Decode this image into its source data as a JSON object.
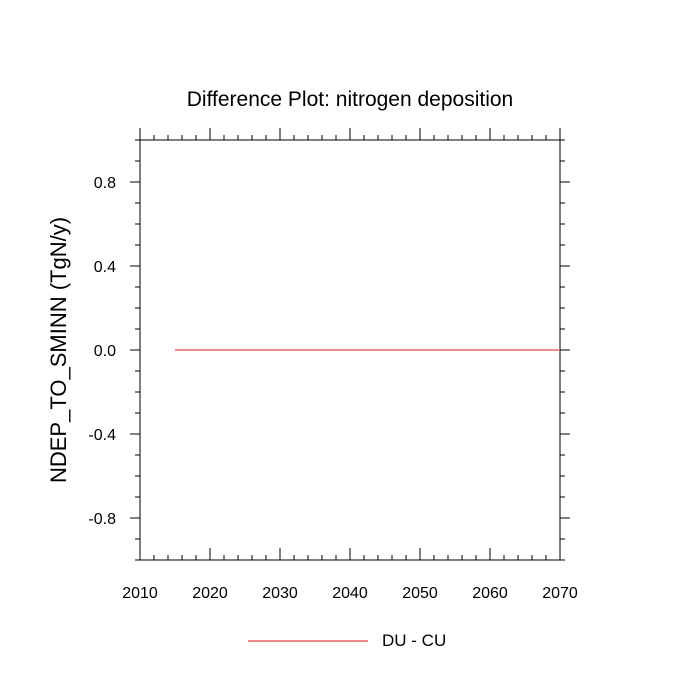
{
  "chart_data": {
    "type": "line",
    "title": "Difference Plot: nitrogen deposition",
    "xlabel": "",
    "ylabel": "NDEP_TO_SMINN  (TgN/y)",
    "xlim": [
      2010,
      2070
    ],
    "ylim": [
      -1.0,
      1.0
    ],
    "x_ticks": [
      2010,
      2020,
      2030,
      2040,
      2050,
      2060,
      2070
    ],
    "x_tick_labels": [
      "2010",
      "2020",
      "2030",
      "2040",
      "2050",
      "2060",
      "2070"
    ],
    "y_ticks": [
      0.8,
      0.4,
      0.0,
      -0.4,
      -0.8
    ],
    "y_tick_labels": [
      "0.8",
      "0.4",
      "0.0",
      "-0.4",
      "-0.8"
    ],
    "grid": false,
    "legend_position": "bottom",
    "series": [
      {
        "name": "DU - CU",
        "color": "#e06666",
        "x": [
          2015,
          2070
        ],
        "y": [
          0.0,
          0.0
        ]
      }
    ]
  }
}
